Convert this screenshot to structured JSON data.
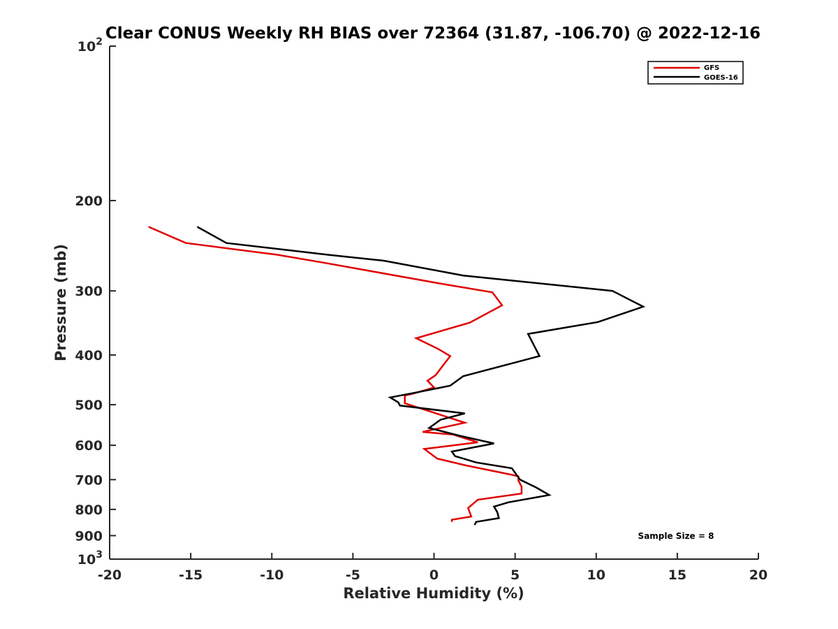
{
  "chart_data": {
    "type": "line",
    "title": "Clear CONUS Weekly RH BIAS over 72364 (31.87, -106.70) @ 2022-12-16",
    "xlabel": "Relative Humidity (%)",
    "ylabel": "Pressure (mb)",
    "xlim": [
      -20,
      20
    ],
    "ylim": [
      100,
      1000
    ],
    "y_scale": "log",
    "y_reversed": true,
    "grid": false,
    "legend_position": "top-right",
    "x_ticks": [
      -20,
      -15,
      -10,
      -5,
      0,
      5,
      10,
      15,
      20
    ],
    "x_tick_labels": [
      "-20",
      "-15",
      "-10",
      "-5",
      "0",
      "5",
      "10",
      "15",
      "20"
    ],
    "y_ticks": [
      100,
      200,
      300,
      400,
      500,
      600,
      700,
      800,
      900,
      1000
    ],
    "y_tick_labels": [
      {
        "base": "10",
        "exp": "2"
      },
      {
        "base": "200",
        "exp": ""
      },
      {
        "base": "300",
        "exp": ""
      },
      {
        "base": "400",
        "exp": ""
      },
      {
        "base": "500",
        "exp": ""
      },
      {
        "base": "600",
        "exp": ""
      },
      {
        "base": "700",
        "exp": ""
      },
      {
        "base": "800",
        "exp": ""
      },
      {
        "base": "900",
        "exp": ""
      },
      {
        "base": "10",
        "exp": "3"
      }
    ],
    "annotation": "Sample Size = 8",
    "series": [
      {
        "name": "GFS",
        "color": "#e00000",
        "points": [
          [
            -17.6,
            225
          ],
          [
            -15.3,
            242
          ],
          [
            -9.7,
            255
          ],
          [
            -6.6,
            265
          ],
          [
            0.3,
            290
          ],
          [
            3.6,
            302
          ],
          [
            4.2,
            320
          ],
          [
            2.2,
            346
          ],
          [
            -1.1,
            371
          ],
          [
            0.3,
            390
          ],
          [
            1.0,
            402
          ],
          [
            0.1,
            438
          ],
          [
            -0.4,
            449
          ],
          [
            0.0,
            463
          ],
          [
            -1.2,
            475
          ],
          [
            -1.8,
            480
          ],
          [
            -1.8,
            497
          ],
          [
            0.3,
            522
          ],
          [
            1.9,
            542
          ],
          [
            -0.7,
            565
          ],
          [
            1.2,
            572
          ],
          [
            2.7,
            592
          ],
          [
            -0.6,
            610
          ],
          [
            0.2,
            637
          ],
          [
            2.0,
            657
          ],
          [
            4.8,
            685
          ],
          [
            5.2,
            690
          ],
          [
            5.2,
            703
          ],
          [
            5.4,
            722
          ],
          [
            5.4,
            745
          ],
          [
            2.7,
            766
          ],
          [
            2.1,
            795
          ],
          [
            2.3,
            826
          ],
          [
            1.1,
            838
          ],
          [
            1.1,
            846
          ]
        ]
      },
      {
        "name": "GOES-16",
        "color": "#000000",
        "points": [
          [
            -14.6,
            225
          ],
          [
            -12.8,
            242
          ],
          [
            -6.6,
            255
          ],
          [
            -3.1,
            262
          ],
          [
            1.8,
            280
          ],
          [
            11.0,
            300
          ],
          [
            12.9,
            322
          ],
          [
            10.1,
            345
          ],
          [
            5.8,
            364
          ],
          [
            6.5,
            402
          ],
          [
            1.8,
            440
          ],
          [
            1.0,
            459
          ],
          [
            -0.9,
            472
          ],
          [
            -2.7,
            484
          ],
          [
            -2.2,
            495
          ],
          [
            -2.1,
            502
          ],
          [
            1.9,
            520
          ],
          [
            0.4,
            535
          ],
          [
            -0.3,
            555
          ],
          [
            1.6,
            575
          ],
          [
            3.7,
            595
          ],
          [
            1.1,
            617
          ],
          [
            1.3,
            630
          ],
          [
            2.6,
            648
          ],
          [
            4.8,
            665
          ],
          [
            5.3,
            700
          ],
          [
            6.3,
            725
          ],
          [
            7.1,
            750
          ],
          [
            4.6,
            775
          ],
          [
            3.7,
            790
          ],
          [
            3.9,
            810
          ],
          [
            4.0,
            832
          ],
          [
            2.6,
            846
          ],
          [
            2.5,
            858
          ]
        ]
      }
    ]
  }
}
